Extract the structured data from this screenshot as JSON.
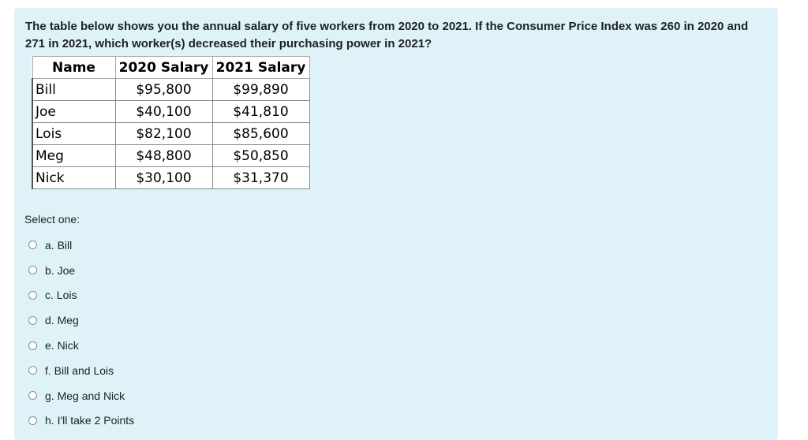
{
  "question": {
    "text": "The table below shows you the annual salary of five workers from 2020 to 2021. If the Consumer Price Index was 260 in 2020 and 271 in 2021, which worker(s) decreased their purchasing power in 2021?"
  },
  "table": {
    "headers": [
      "Name",
      "2020 Salary",
      "2021 Salary"
    ],
    "rows": [
      [
        "Bill",
        "$95,800",
        "$99,890"
      ],
      [
        "Joe",
        "$40,100",
        "$41,810"
      ],
      [
        "Lois",
        "$82,100",
        "$85,600"
      ],
      [
        "Meg",
        "$48,800",
        "$50,850"
      ],
      [
        "Nick",
        "$30,100",
        "$31,370"
      ]
    ]
  },
  "answer": {
    "prompt": "Select one:",
    "options": [
      "a. Bill",
      "b. Joe",
      "c. Lois",
      "d. Meg",
      "e. Nick",
      "f. Bill and Lois",
      "g. Meg and Nick",
      "h. I'll take 2 Points"
    ]
  }
}
